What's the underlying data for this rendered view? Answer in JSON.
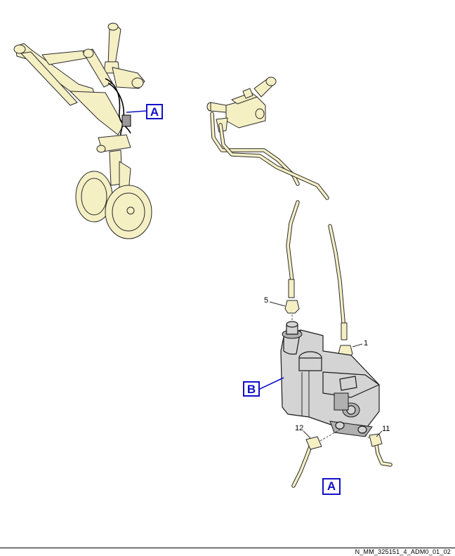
{
  "callouts": {
    "a_upper": "A",
    "b": "B",
    "a_lower": "A"
  },
  "items": {
    "n5": "5",
    "n1": "1",
    "n12": "12",
    "n11": "11"
  },
  "footer": {
    "reference": "N_MM_325151_4_ADM0_01_02"
  },
  "colors": {
    "part_fill": "#f5efc4",
    "unit_fill": "#d4d4d4",
    "callout": "#1010c8"
  }
}
